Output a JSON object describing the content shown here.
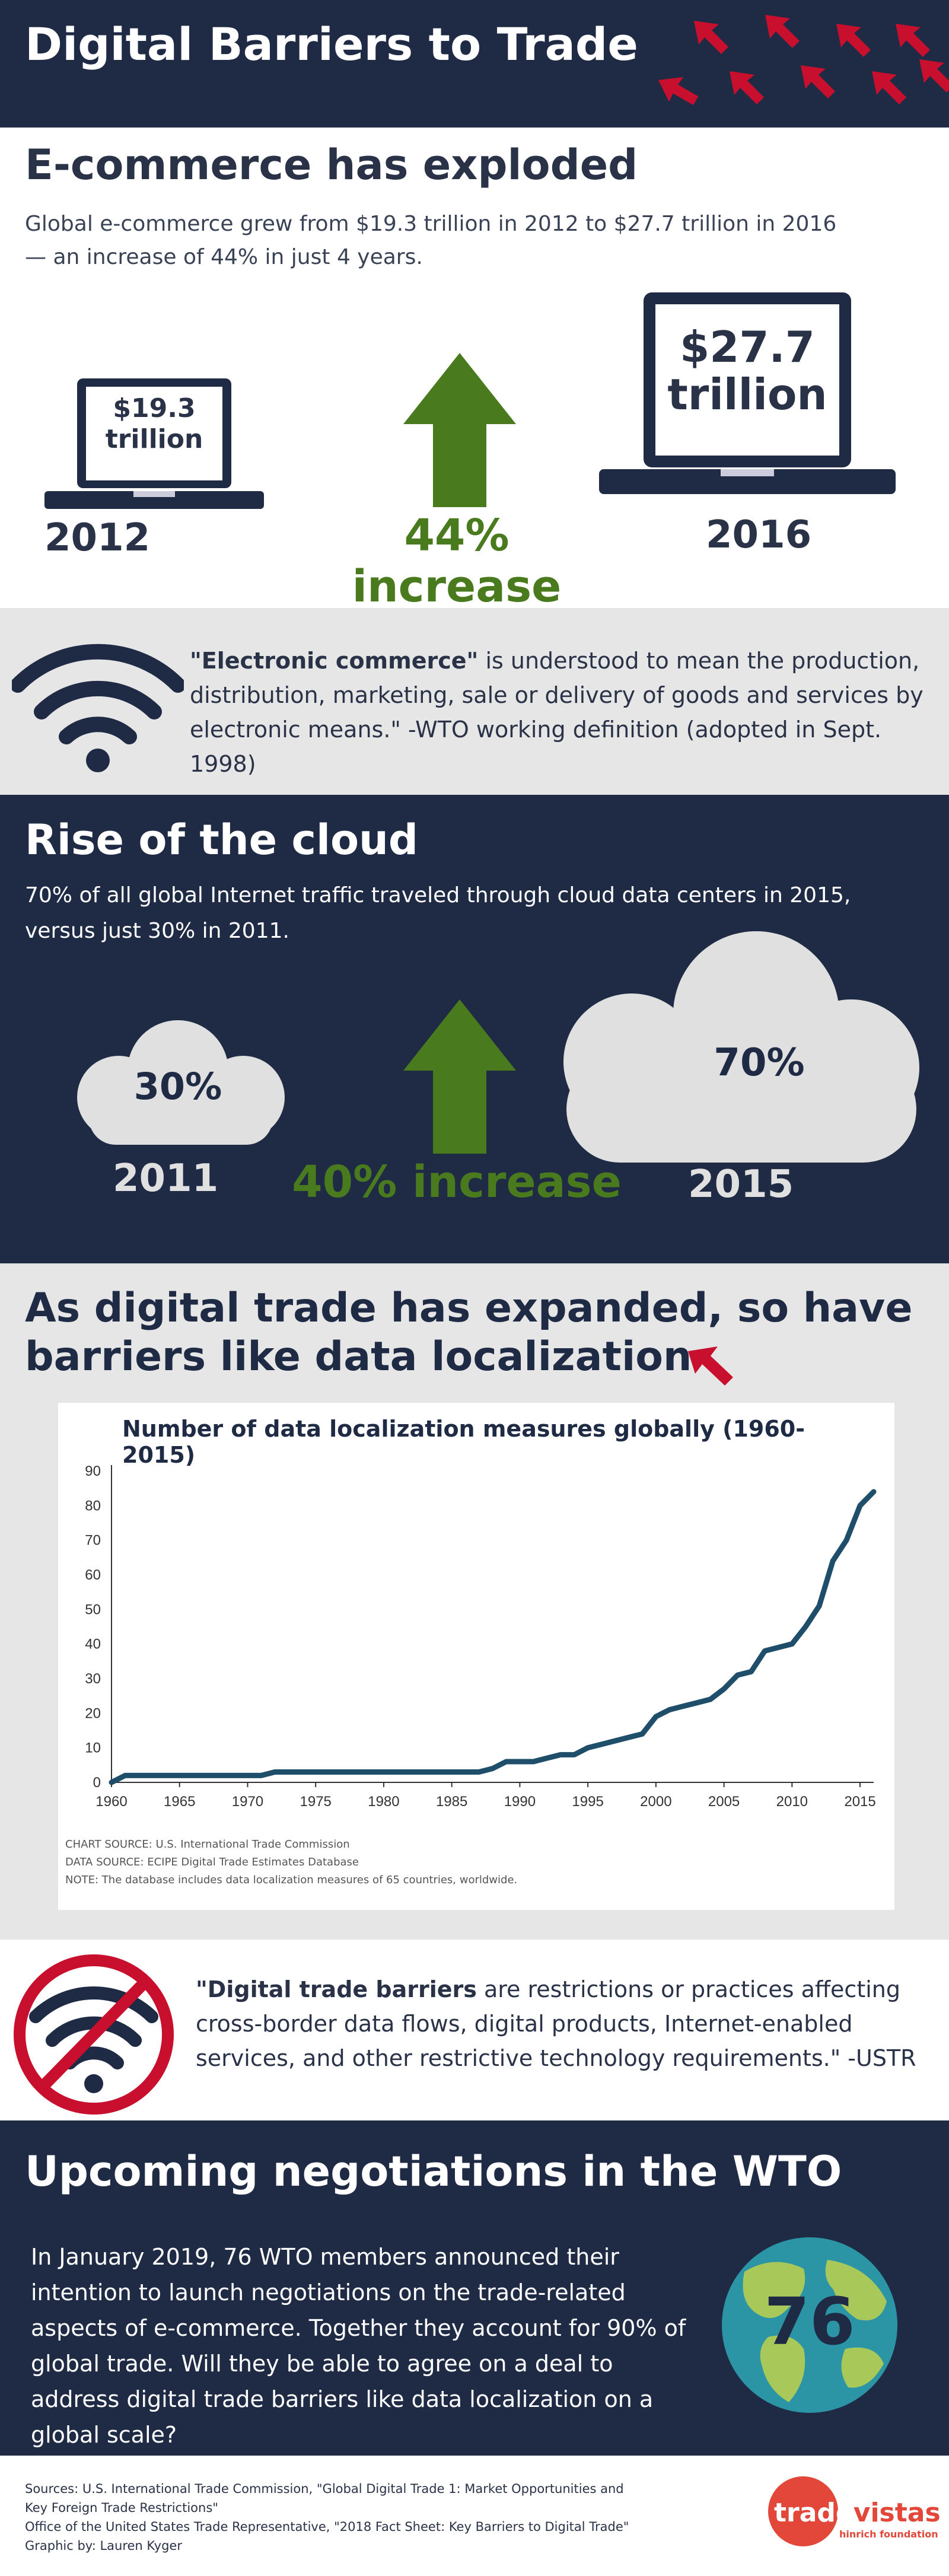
{
  "header": {
    "title": "Digital Barriers to Trade"
  },
  "ecommerce": {
    "heading": "E-commerce has exploded",
    "body": "Global e-commerce grew from $19.3 trillion in 2012 to $27.7 trillion in 2016— an increase of 44% in just 4 years.",
    "left_amount_line1": "$19.3",
    "left_amount_line2": "trillion",
    "left_year": "2012",
    "right_amount_line1": "$27.7",
    "right_amount_line2": "trillion",
    "right_year": "2016",
    "increase": "44% increase"
  },
  "definition1": {
    "term": "\"Electronic commerce\"",
    "text": " is understood to mean the production, distribution, marketing, sale or delivery of goods and services by electronic means.\" -WTO working definition (adopted in Sept. 1998)"
  },
  "cloud": {
    "heading": "Rise of the cloud",
    "body": "70% of all global Internet traffic traveled through cloud data centers in 2015, versus just 30% in 2011.",
    "left_value": "30%",
    "left_year": "2011",
    "right_value": "70%",
    "right_year": "2015",
    "increase": "40% increase"
  },
  "localization": {
    "heading_line1": "As digital trade has expanded, so have",
    "heading_line2": "barriers like data localization"
  },
  "chart_data": {
    "type": "line",
    "title": "Number of data localization measures globally (1960-2015)",
    "xlim": [
      1960,
      2016
    ],
    "ylim": [
      0,
      90
    ],
    "x_ticks": [
      1960,
      1965,
      1970,
      1975,
      1980,
      1985,
      1990,
      1995,
      2000,
      2005,
      2010,
      2015
    ],
    "y_ticks": [
      0,
      10,
      20,
      30,
      40,
      50,
      60,
      70,
      80,
      90
    ],
    "x": [
      1960,
      1961,
      1962,
      1963,
      1964,
      1965,
      1966,
      1967,
      1968,
      1969,
      1970,
      1971,
      1972,
      1973,
      1974,
      1975,
      1976,
      1977,
      1978,
      1979,
      1980,
      1981,
      1982,
      1983,
      1984,
      1985,
      1986,
      1987,
      1988,
      1989,
      1990,
      1991,
      1992,
      1993,
      1994,
      1995,
      1996,
      1997,
      1998,
      1999,
      2000,
      2001,
      2002,
      2003,
      2004,
      2005,
      2006,
      2007,
      2008,
      2009,
      2010,
      2011,
      2012,
      2013,
      2014,
      2015,
      2016
    ],
    "values": [
      0,
      2,
      2,
      2,
      2,
      2,
      2,
      2,
      2,
      2,
      2,
      2,
      3,
      3,
      3,
      3,
      3,
      3,
      3,
      3,
      3,
      3,
      3,
      3,
      3,
      3,
      3,
      3,
      4,
      6,
      6,
      6,
      7,
      8,
      8,
      10,
      11,
      12,
      13,
      14,
      19,
      21,
      22,
      23,
      24,
      27,
      31,
      32,
      38,
      39,
      40,
      45,
      51,
      64,
      70,
      80,
      84
    ],
    "grid": false,
    "legend": "none",
    "source_lines": [
      "CHART SOURCE: U.S. International Trade Commission",
      "DATA SOURCE: ECIPE Digital Trade Estimates Database",
      "NOTE: The database includes data localization measures of 65 countries, worldwide."
    ],
    "line_color": "#1f4e6b"
  },
  "definition2": {
    "term": "\"Digital trade barriers",
    "text": " are restrictions or practices affecting cross-border data flows, digital products, Internet-enabled services, and other restrictive technology requirements.\" -USTR"
  },
  "wto": {
    "heading": "Upcoming negotiations in the WTO",
    "body": "In January 2019, 76 WTO members announced their intention to launch negotiations on the trade-related aspects of e-commerce. Together they account for 90% of global trade. Will they be able to agree on a deal to address digital trade barriers like data localization on a global scale?",
    "globe_number": "76"
  },
  "footer": {
    "line1": "Sources: U.S. International Trade Commission, \"Global Digital Trade 1: Market Opportunities and",
    "line2": "Key Foreign Trade Restrictions\"",
    "line3": "Office of the United States Trade Representative, \"2018 Fact Sheet: Key Barriers to Digital Trade\"",
    "line4": "Graphic by: Lauren Kyger",
    "logo_main_a": "trade",
    "logo_main_b": "vistas",
    "logo_sub": "hinrich foundation"
  },
  "colors": {
    "navy": "#1f2a44",
    "green": "#4a7a1e",
    "red": "#c8102e",
    "gray_band": "#e6e6e6",
    "cloud": "#e0e0e0"
  }
}
